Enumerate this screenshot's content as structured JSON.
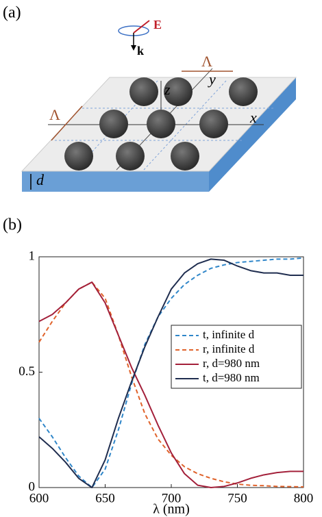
{
  "panel_a": {
    "label": "(a)",
    "field": "E",
    "wavevector": "k",
    "period_front": "Λ",
    "period_back": "Λ",
    "axis_x": "x",
    "axis_y": "y",
    "axis_z": "z",
    "thickness": "d"
  },
  "chart_data": {
    "type": "line",
    "panel_label": "(b)",
    "xlabel": "λ (nm)",
    "x": [
      600,
      610,
      620,
      630,
      640,
      650,
      660,
      670,
      680,
      690,
      700,
      710,
      720,
      730,
      740,
      750,
      760,
      770,
      780,
      790,
      800
    ],
    "xlim": [
      600,
      800
    ],
    "xticks": [
      600,
      650,
      700,
      750,
      800
    ],
    "ylim": [
      0,
      1
    ],
    "yticks": [
      0,
      0.5,
      1
    ],
    "series": [
      {
        "name": "t, infinite d",
        "color": "#2f86c9",
        "style": "dashed",
        "values": [
          0.3,
          0.22,
          0.13,
          0.05,
          0.0,
          0.08,
          0.25,
          0.45,
          0.62,
          0.74,
          0.82,
          0.88,
          0.92,
          0.95,
          0.965,
          0.975,
          0.98,
          0.985,
          0.99,
          0.99,
          0.995
        ]
      },
      {
        "name": "r, infinite d",
        "color": "#e0622a",
        "style": "dashed",
        "values": [
          0.63,
          0.72,
          0.8,
          0.86,
          0.89,
          0.82,
          0.66,
          0.48,
          0.32,
          0.21,
          0.14,
          0.09,
          0.06,
          0.04,
          0.025,
          0.015,
          0.01,
          0.008,
          0.005,
          0.004,
          0.003
        ]
      },
      {
        "name": "r, d=980 nm",
        "color": "#a3203a",
        "style": "solid",
        "values": [
          0.72,
          0.75,
          0.8,
          0.86,
          0.89,
          0.8,
          0.66,
          0.52,
          0.4,
          0.27,
          0.15,
          0.06,
          0.01,
          0.0,
          0.005,
          0.02,
          0.04,
          0.055,
          0.065,
          0.07,
          0.07
        ]
      },
      {
        "name": "t, d=980 nm",
        "color": "#1f2d4f",
        "style": "solid",
        "values": [
          0.22,
          0.17,
          0.11,
          0.04,
          0.0,
          0.12,
          0.3,
          0.46,
          0.61,
          0.74,
          0.86,
          0.93,
          0.97,
          0.99,
          0.985,
          0.96,
          0.94,
          0.93,
          0.93,
          0.92,
          0.92
        ]
      }
    ]
  }
}
